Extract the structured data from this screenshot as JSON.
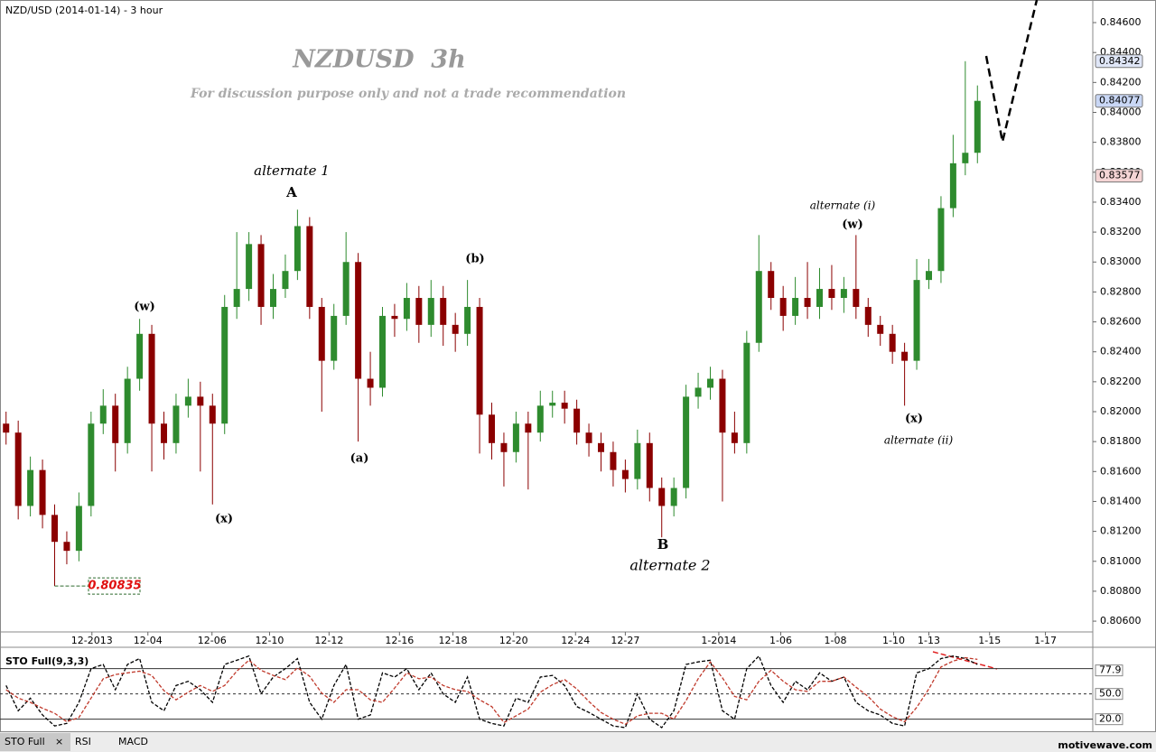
{
  "header": {
    "title": "NZD/USD (2014-01-14) - 3 hour"
  },
  "chart_data": [
    {
      "type": "candlestick",
      "title": "NZDUSD  3h",
      "subtitle": "For discussion purpose only and not a trade recommendation",
      "up_color": "#2e8b2e",
      "down_color": "#8b0000",
      "grid": false,
      "xlim": [
        -0.5,
        89.5
      ],
      "xticks": [
        {
          "value": 7.07,
          "label": "12-2013"
        },
        {
          "value": 11.68,
          "label": "12-04"
        },
        {
          "value": 16.96,
          "label": "12-06"
        },
        {
          "value": 21.7,
          "label": "12-10"
        },
        {
          "value": 26.6,
          "label": "12-12"
        },
        {
          "value": 32.4,
          "label": "12-16"
        },
        {
          "value": 36.8,
          "label": "12-18"
        },
        {
          "value": 41.8,
          "label": "12-20"
        },
        {
          "value": 46.9,
          "label": "12-24"
        },
        {
          "value": 51.0,
          "label": "12-27"
        },
        {
          "value": 58.7,
          "label": "1-2014"
        },
        {
          "value": 63.8,
          "label": "1-06"
        },
        {
          "value": 68.3,
          "label": "1-08"
        },
        {
          "value": 73.1,
          "label": "1-10"
        },
        {
          "value": 76.0,
          "label": "1-13"
        },
        {
          "value": 81.0,
          "label": "1-15"
        },
        {
          "value": 85.6,
          "label": "1-17"
        }
      ],
      "ylim": [
        0.80528,
        0.84751
      ],
      "yticks": [
        {
          "value": 0.806,
          "label": "0.80600"
        },
        {
          "value": 0.808,
          "label": "0.80800"
        },
        {
          "value": 0.81,
          "label": "0.81000"
        },
        {
          "value": 0.812,
          "label": "0.81200"
        },
        {
          "value": 0.814,
          "label": "0.81400"
        },
        {
          "value": 0.816,
          "label": "0.81600"
        },
        {
          "value": 0.818,
          "label": "0.81800"
        },
        {
          "value": 0.82,
          "label": "0.82000"
        },
        {
          "value": 0.822,
          "label": "0.82200"
        },
        {
          "value": 0.824,
          "label": "0.82400"
        },
        {
          "value": 0.826,
          "label": "0.82600"
        },
        {
          "value": 0.828,
          "label": "0.82800"
        },
        {
          "value": 0.83,
          "label": "0.83000"
        },
        {
          "value": 0.832,
          "label": "0.83200"
        },
        {
          "value": 0.834,
          "label": "0.83400"
        },
        {
          "value": 0.836,
          "label": "0.83600"
        },
        {
          "value": 0.838,
          "label": "0.83800"
        },
        {
          "value": 0.84,
          "label": "0.84000"
        },
        {
          "value": 0.842,
          "label": "0.84200"
        },
        {
          "value": 0.844,
          "label": "0.84400"
        },
        {
          "value": 0.846,
          "label": "0.84600"
        }
      ],
      "ohlc": [
        [
          0.8192,
          0.82,
          0.8178,
          0.8186
        ],
        [
          0.8186,
          0.8194,
          0.8128,
          0.8137
        ],
        [
          0.8137,
          0.817,
          0.813,
          0.8161
        ],
        [
          0.8161,
          0.8168,
          0.8122,
          0.8131
        ],
        [
          0.8131,
          0.8138,
          0.80835,
          0.8113
        ],
        [
          0.8113,
          0.812,
          0.8098,
          0.8107
        ],
        [
          0.8107,
          0.8146,
          0.81,
          0.8137
        ],
        [
          0.8137,
          0.82,
          0.813,
          0.8192
        ],
        [
          0.8192,
          0.8215,
          0.8185,
          0.8204
        ],
        [
          0.8204,
          0.8212,
          0.816,
          0.8179
        ],
        [
          0.8179,
          0.823,
          0.8172,
          0.8222
        ],
        [
          0.8222,
          0.8262,
          0.8214,
          0.8252
        ],
        [
          0.8252,
          0.8258,
          0.816,
          0.8192
        ],
        [
          0.8192,
          0.82,
          0.8168,
          0.8179
        ],
        [
          0.8179,
          0.8212,
          0.8172,
          0.8204
        ],
        [
          0.8204,
          0.8222,
          0.8196,
          0.821
        ],
        [
          0.821,
          0.822,
          0.816,
          0.8204
        ],
        [
          0.8204,
          0.8212,
          0.8138,
          0.8192
        ],
        [
          0.8192,
          0.8278,
          0.8185,
          0.827
        ],
        [
          0.827,
          0.832,
          0.8262,
          0.8282
        ],
        [
          0.8282,
          0.832,
          0.8274,
          0.8312
        ],
        [
          0.8312,
          0.8318,
          0.8258,
          0.827
        ],
        [
          0.827,
          0.8292,
          0.8262,
          0.8282
        ],
        [
          0.8282,
          0.8305,
          0.8276,
          0.8294
        ],
        [
          0.8294,
          0.8335,
          0.8288,
          0.8324
        ],
        [
          0.8324,
          0.833,
          0.8262,
          0.827
        ],
        [
          0.827,
          0.8276,
          0.82,
          0.8234
        ],
        [
          0.8234,
          0.8272,
          0.8228,
          0.8264
        ],
        [
          0.8264,
          0.832,
          0.8258,
          0.83
        ],
        [
          0.83,
          0.8306,
          0.818,
          0.8222
        ],
        [
          0.8222,
          0.824,
          0.8204,
          0.8216
        ],
        [
          0.8216,
          0.827,
          0.821,
          0.8264
        ],
        [
          0.8264,
          0.8272,
          0.825,
          0.8262
        ],
        [
          0.8262,
          0.8286,
          0.8254,
          0.8276
        ],
        [
          0.8276,
          0.8284,
          0.8246,
          0.8258
        ],
        [
          0.8258,
          0.8288,
          0.825,
          0.8276
        ],
        [
          0.8276,
          0.8284,
          0.8244,
          0.8258
        ],
        [
          0.8258,
          0.8266,
          0.824,
          0.8252
        ],
        [
          0.8252,
          0.8288,
          0.8244,
          0.827
        ],
        [
          0.827,
          0.8276,
          0.8172,
          0.8198
        ],
        [
          0.8198,
          0.8206,
          0.8168,
          0.8179
        ],
        [
          0.8179,
          0.8186,
          0.815,
          0.8173
        ],
        [
          0.8173,
          0.82,
          0.8166,
          0.8192
        ],
        [
          0.8192,
          0.82,
          0.8148,
          0.8186
        ],
        [
          0.8186,
          0.8214,
          0.818,
          0.8204
        ],
        [
          0.8204,
          0.8214,
          0.8196,
          0.8206
        ],
        [
          0.8206,
          0.8214,
          0.8192,
          0.8202
        ],
        [
          0.8202,
          0.8208,
          0.8178,
          0.8186
        ],
        [
          0.8186,
          0.8192,
          0.817,
          0.8179
        ],
        [
          0.8179,
          0.8186,
          0.816,
          0.8173
        ],
        [
          0.8173,
          0.818,
          0.815,
          0.8161
        ],
        [
          0.8161,
          0.8168,
          0.8146,
          0.8155
        ],
        [
          0.8155,
          0.8188,
          0.8148,
          0.8179
        ],
        [
          0.8179,
          0.8186,
          0.814,
          0.8149
        ],
        [
          0.8149,
          0.8156,
          0.8116,
          0.8137
        ],
        [
          0.8137,
          0.8156,
          0.813,
          0.8149
        ],
        [
          0.8149,
          0.8218,
          0.8142,
          0.821
        ],
        [
          0.821,
          0.8226,
          0.8202,
          0.8216
        ],
        [
          0.8216,
          0.823,
          0.8208,
          0.8222
        ],
        [
          0.8222,
          0.8228,
          0.814,
          0.8186
        ],
        [
          0.8186,
          0.82,
          0.8172,
          0.8179
        ],
        [
          0.8179,
          0.8254,
          0.8172,
          0.8246
        ],
        [
          0.8246,
          0.8318,
          0.824,
          0.8294
        ],
        [
          0.8294,
          0.83,
          0.8268,
          0.8276
        ],
        [
          0.8276,
          0.8284,
          0.8254,
          0.8264
        ],
        [
          0.8264,
          0.829,
          0.8258,
          0.8276
        ],
        [
          0.8276,
          0.83,
          0.8262,
          0.827
        ],
        [
          0.827,
          0.8296,
          0.8262,
          0.8282
        ],
        [
          0.8282,
          0.8298,
          0.8268,
          0.8276
        ],
        [
          0.8276,
          0.829,
          0.8266,
          0.8282
        ],
        [
          0.8282,
          0.8318,
          0.8262,
          0.827
        ],
        [
          0.827,
          0.8276,
          0.825,
          0.8258
        ],
        [
          0.8258,
          0.8264,
          0.8244,
          0.8252
        ],
        [
          0.8252,
          0.8258,
          0.8232,
          0.824
        ],
        [
          0.824,
          0.8246,
          0.8204,
          0.8234
        ],
        [
          0.8234,
          0.8302,
          0.8228,
          0.8288
        ],
        [
          0.8288,
          0.8302,
          0.8282,
          0.8294
        ],
        [
          0.8294,
          0.8344,
          0.8286,
          0.8336
        ],
        [
          0.8336,
          0.8385,
          0.833,
          0.8366
        ],
        [
          0.8366,
          0.84342,
          0.8358,
          0.8373
        ],
        [
          0.8373,
          0.8418,
          0.8366,
          0.84077
        ]
      ],
      "price_markers": [
        {
          "value": 0.84342,
          "color": "#dfe6f7"
        },
        {
          "value": 0.84077,
          "color": "#c9d7f5"
        },
        {
          "value": 0.83577,
          "color": "#f5d5d5"
        }
      ],
      "low_marker": 0.80835,
      "annotations": [
        {
          "text": "alternate 1",
          "color": "#2f5f2f"
        },
        {
          "text": "A",
          "color": "#000000"
        },
        {
          "text": "(w)",
          "color": "#e01010"
        },
        {
          "text": "(x)",
          "color": "#e01010"
        },
        {
          "text": "(a)",
          "color": "#e01010"
        },
        {
          "text": "(b)",
          "color": "#e01010"
        },
        {
          "text": "B",
          "color": "#000000"
        },
        {
          "text": "alternate 2",
          "color": "#2f5f2f"
        },
        {
          "text": "alternate (i)",
          "color": "#2f5f2f"
        },
        {
          "text": "(w)",
          "color": "#e01010"
        },
        {
          "text": "(x)",
          "color": "#e01010"
        },
        {
          "text": "alternate (ii)",
          "color": "#2f5f2f"
        }
      ]
    },
    {
      "type": "line",
      "title": "STO Full(9,3,3)",
      "ylim": [
        10,
        100
      ],
      "levels": [
        80,
        50,
        20
      ],
      "yticks": [
        {
          "value": 50,
          "label": "50.0"
        },
        {
          "value": 20,
          "label": "20.0"
        }
      ],
      "current": 77.9,
      "series": [
        {
          "color": "#000000",
          "values": [
            60,
            30,
            45,
            25,
            12,
            15,
            40,
            80,
            85,
            55,
            85,
            92,
            40,
            30,
            60,
            65,
            55,
            40,
            85,
            90,
            95,
            50,
            70,
            80,
            92,
            40,
            20,
            60,
            85,
            20,
            25,
            75,
            70,
            80,
            55,
            75,
            50,
            40,
            70,
            20,
            15,
            12,
            45,
            40,
            70,
            72,
            60,
            35,
            28,
            20,
            12,
            10,
            50,
            20,
            10,
            30,
            85,
            88,
            90,
            30,
            20,
            80,
            95,
            60,
            40,
            65,
            55,
            75,
            65,
            70,
            40,
            30,
            25,
            15,
            12,
            75,
            80,
            92,
            95,
            92,
            85
          ]
        },
        {
          "color": "#c0392b",
          "values": [
            55,
            45,
            40,
            33,
            27,
            17,
            22,
            45,
            68,
            73,
            75,
            77,
            72,
            54,
            43,
            52,
            60,
            53,
            60,
            77,
            90,
            78,
            72,
            67,
            81,
            71,
            51,
            40,
            55,
            55,
            43,
            40,
            57,
            75,
            68,
            70,
            60,
            55,
            53,
            43,
            35,
            16,
            24,
            32,
            52,
            61,
            67,
            56,
            41,
            28,
            20,
            14,
            24,
            27,
            27,
            20,
            42,
            68,
            88,
            69,
            47,
            43,
            65,
            78,
            65,
            55,
            53,
            65,
            65,
            70,
            58,
            47,
            32,
            23,
            17,
            34,
            56,
            82,
            89,
            93,
            91
          ]
        }
      ]
    }
  ],
  "tabs": [
    "STO Full",
    "RSI",
    "MACD"
  ],
  "footer": "motivewave.com"
}
